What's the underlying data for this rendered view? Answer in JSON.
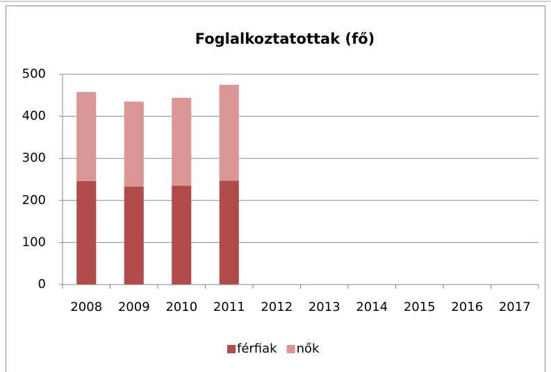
{
  "chart_data": {
    "type": "stacked_bar",
    "title": "Foglalkoztatottak (fő)",
    "categories": [
      "2008",
      "2009",
      "2010",
      "2011",
      "2012",
      "2013",
      "2014",
      "2015",
      "2016",
      "2017"
    ],
    "series": [
      {
        "name": "férfiak",
        "color": "#b04b49",
        "values": [
          246,
          233,
          235,
          247,
          null,
          null,
          null,
          null,
          null,
          null
        ]
      },
      {
        "name": "nők",
        "color": "#d99694",
        "values": [
          212,
          202,
          209,
          228,
          null,
          null,
          null,
          null,
          null,
          null
        ]
      }
    ],
    "ylim": [
      0,
      500
    ],
    "yticks": [
      0,
      100,
      200,
      300,
      400,
      500
    ],
    "grid": true,
    "legend": "bottom"
  }
}
